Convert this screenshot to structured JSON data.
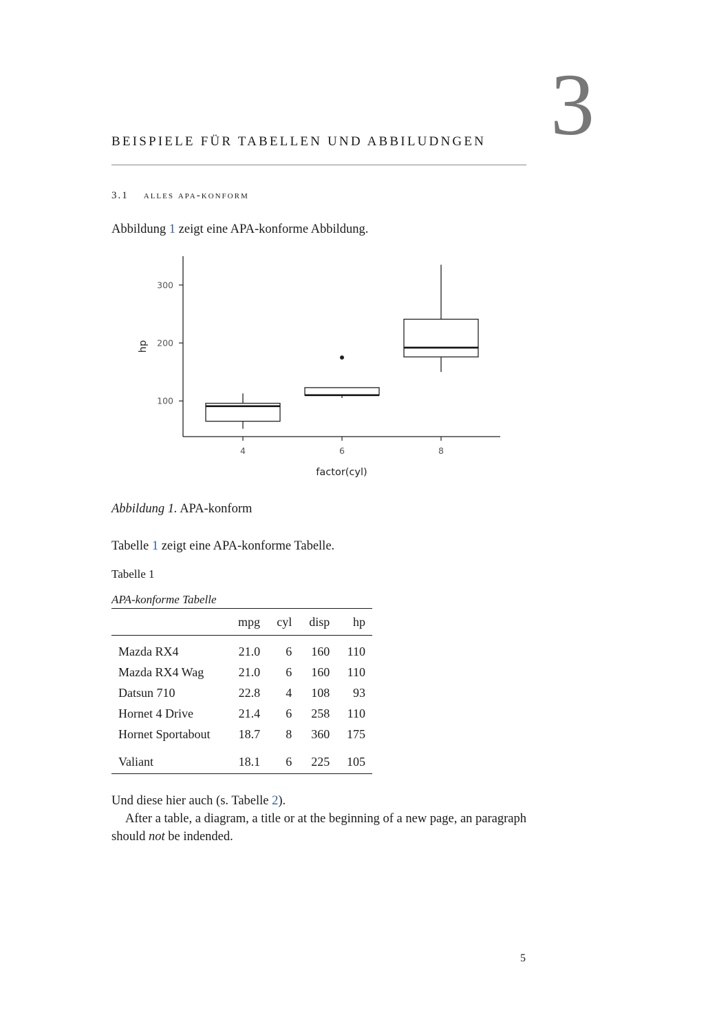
{
  "chapter": {
    "number": "3",
    "title": "Beispiele für Tabellen und Abbiludngen"
  },
  "section": {
    "number": "3.1",
    "title": "Alles APA-konform"
  },
  "intro_figure": {
    "before": "Abbildung ",
    "ref": "1",
    "after": " zeigt eine APA-konforme Abbildung."
  },
  "figure_caption": {
    "label": "Abbildung 1.",
    "text": " APA-konform"
  },
  "intro_table": {
    "before": "Tabelle ",
    "ref": "1",
    "after": " zeigt eine APA-konforme Tabelle."
  },
  "table": {
    "label": "Tabelle 1",
    "title": "APA-konforme Tabelle",
    "columns": [
      "",
      "mpg",
      "cyl",
      "disp",
      "hp"
    ],
    "rows": [
      [
        "Mazda RX4",
        "21.0",
        "6",
        "160",
        "110"
      ],
      [
        "Mazda RX4 Wag",
        "21.0",
        "6",
        "160",
        "110"
      ],
      [
        "Datsun 710",
        "22.8",
        "4",
        "108",
        "93"
      ],
      [
        "Hornet 4 Drive",
        "21.4",
        "6",
        "258",
        "110"
      ],
      [
        "Hornet Sportabout",
        "18.7",
        "8",
        "360",
        "175"
      ],
      [
        "Valiant",
        "18.1",
        "6",
        "225",
        "105"
      ]
    ]
  },
  "closing": {
    "p1_before": "Und diese hier auch (s. Tabelle ",
    "p1_ref": "2",
    "p1_after": ").",
    "p2_before": "After a table, a diagram, a title or at the beginning of a new page, an paragraph should ",
    "p2_em": "not",
    "p2_after": " be indended."
  },
  "page_number": "5",
  "chart_data": {
    "type": "boxplot",
    "xlabel": "factor(cyl)",
    "ylabel": "hp",
    "categories": [
      "4",
      "6",
      "8"
    ],
    "ylim": [
      40,
      345
    ],
    "yticks": [
      100,
      200,
      300
    ],
    "grid": false,
    "boxes": [
      {
        "category": "4",
        "whisker_low": 52,
        "q1": 65,
        "median": 91,
        "q3": 96,
        "whisker_high": 113,
        "outliers": []
      },
      {
        "category": "6",
        "whisker_low": 105,
        "q1": 110,
        "median": 110,
        "q3": 123,
        "whisker_high": 123,
        "outliers": [
          175
        ]
      },
      {
        "category": "8",
        "whisker_low": 150,
        "q1": 176,
        "median": 192,
        "q3": 241,
        "whisker_high": 335,
        "outliers": []
      }
    ]
  }
}
